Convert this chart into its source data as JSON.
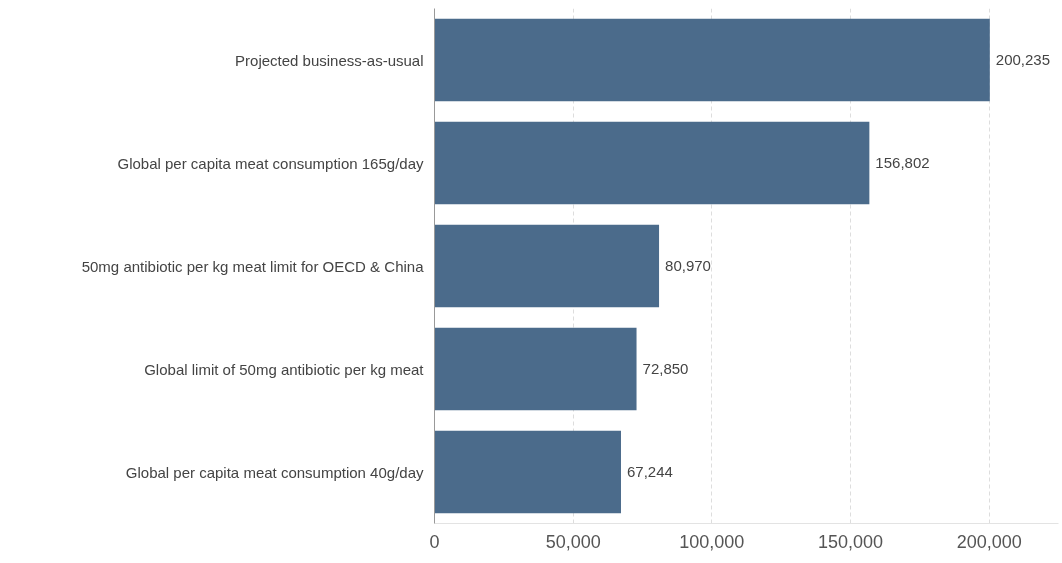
{
  "chart_data": {
    "type": "bar",
    "orientation": "horizontal",
    "categories": [
      "Projected business-as-usual",
      "Global per capita meat consumption 165g/day",
      "50mg antibiotic per kg meat limit for OECD & China",
      "Global limit of 50mg antibiotic per kg meat",
      "Global per capita meat consumption 40g/day"
    ],
    "values": [
      200235,
      156802,
      80970,
      72850,
      67244
    ],
    "color": "#4b6b8b",
    "xlim": [
      0,
      225000
    ],
    "xticks": [
      {
        "value": 0,
        "label": "0"
      },
      {
        "value": 50000,
        "label": "50,000"
      },
      {
        "value": 100000,
        "label": "100,000"
      },
      {
        "value": 150000,
        "label": "150,000"
      },
      {
        "value": 200000,
        "label": "200,000"
      }
    ],
    "grid": "x",
    "value_labels": [
      "200,235",
      "156,802",
      "80,970",
      "72,850",
      "67,244"
    ]
  }
}
